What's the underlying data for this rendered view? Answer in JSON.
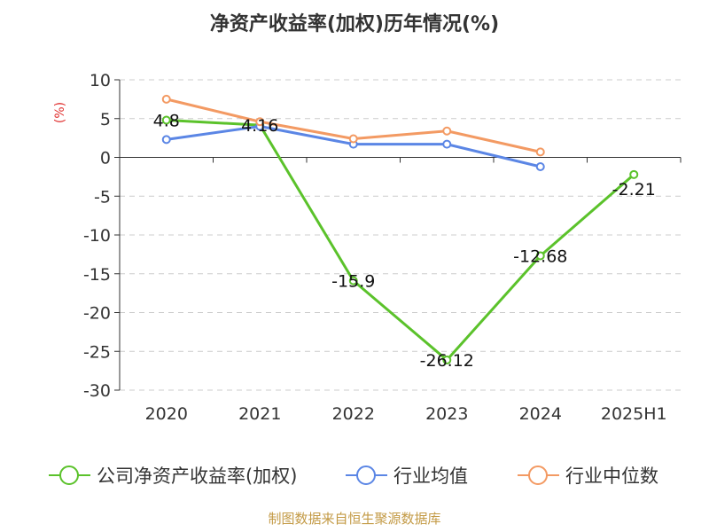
{
  "chart_data": {
    "type": "line",
    "title": "净资产收益率(加权)历年情况(%)",
    "ylabel": "(%)",
    "categories": [
      "2020",
      "2021",
      "2022",
      "2023",
      "2024",
      "2025H1"
    ],
    "ylim": [
      -30,
      10
    ],
    "yticks": [
      10,
      5,
      0,
      -5,
      -10,
      -15,
      -20,
      -25,
      -30
    ],
    "grid": true,
    "legend_position": "bottom",
    "series": [
      {
        "name": "公司净资产收益率(加权)",
        "color": "#5bc22b",
        "values": [
          4.8,
          4.16,
          -15.9,
          -26.12,
          -12.68,
          -2.21
        ],
        "labels": [
          "4.8",
          "4.16",
          "-15.9",
          "-26.12",
          "-12.68",
          "-2.21"
        ]
      },
      {
        "name": "行业均值",
        "color": "#5b86e5",
        "values": [
          2.3,
          4.0,
          1.7,
          1.7,
          -1.2,
          null
        ]
      },
      {
        "name": "行业中位数",
        "color": "#f39a63",
        "values": [
          7.5,
          4.6,
          2.4,
          3.4,
          0.7,
          null
        ]
      }
    ]
  },
  "footer": {
    "source": "制图数据来自恒生聚源数据库"
  }
}
